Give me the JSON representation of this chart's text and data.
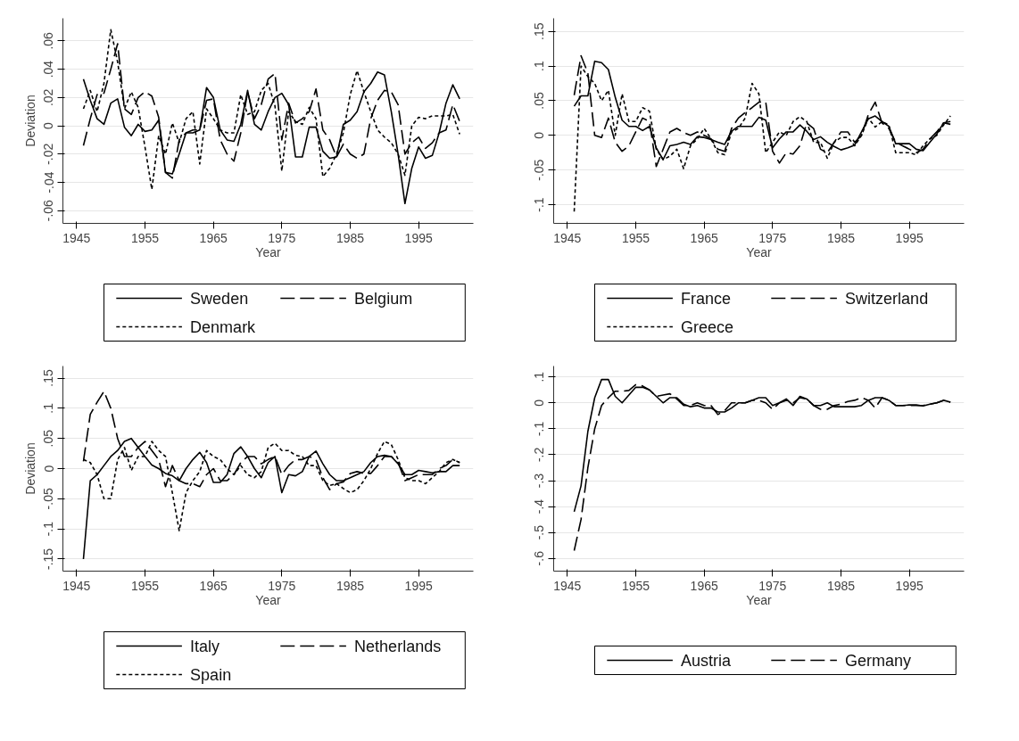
{
  "chart_data": [
    {
      "type": "line",
      "xlabel": "Year",
      "ylabel": "Deviation",
      "grid": "y",
      "legend": "bottom",
      "x": [
        1946,
        1947,
        1948,
        1949,
        1950,
        1951,
        1952,
        1953,
        1954,
        1955,
        1956,
        1957,
        1958,
        1959,
        1960,
        1961,
        1962,
        1963,
        1964,
        1965,
        1966,
        1967,
        1968,
        1969,
        1970,
        1971,
        1972,
        1973,
        1974,
        1975,
        1976,
        1977,
        1978,
        1979,
        1980,
        1981,
        1982,
        1983,
        1984,
        1985,
        1986,
        1987,
        1988,
        1989,
        1990,
        1991,
        1992,
        1993,
        1994,
        1995,
        1996,
        1997,
        1998,
        1999,
        2000,
        2001
      ],
      "xlim": [
        1943,
        2003
      ],
      "xticks": [
        1945,
        1955,
        1965,
        1975,
        1985,
        1995
      ],
      "ylim": [
        -0.069,
        0.076
      ],
      "yticks": [
        {
          "value": -0.06,
          "label": "-.06"
        },
        {
          "value": -0.04,
          "label": "-.04"
        },
        {
          "value": -0.02,
          "label": "-.02"
        },
        0,
        {
          "value": 0.02,
          "label": ".02"
        },
        {
          "value": 0.04,
          "label": ".04"
        },
        {
          "value": 0.06,
          "label": ".06"
        }
      ],
      "series": [
        {
          "name": "Sweden",
          "color": "#000000",
          "line_style": "solid",
          "values": [
            0.033,
            0.018,
            0.005,
            0.001,
            0.016,
            0.019,
            -0.001,
            -0.007,
            0.001,
            -0.004,
            -0.003,
            0.004,
            -0.033,
            -0.034,
            -0.02,
            -0.005,
            -0.005,
            -0.003,
            0.027,
            0.02,
            -0.003,
            -0.01,
            -0.011,
            0.001,
            0.025,
            0.001,
            -0.003,
            0.01,
            0.02,
            0.023,
            0.015,
            -0.022,
            -0.022,
            -0.001,
            -0.001,
            -0.018,
            -0.023,
            -0.022,
            0.001,
            0.004,
            0.01,
            0.024,
            0.03,
            0.038,
            0.036,
            0.01,
            -0.02,
            -0.055,
            -0.03,
            -0.015,
            -0.023,
            -0.021,
            -0.005,
            0.016,
            0.029,
            0.019
          ]
        },
        {
          "name": "Belgium",
          "color": "#000000",
          "line_style": "dashed",
          "values": [
            -0.014,
            0.005,
            0.022,
            0.023,
            0.04,
            0.058,
            0.012,
            0.008,
            0.02,
            0.024,
            0.021,
            0.006,
            -0.033,
            -0.037,
            -0.01,
            -0.005,
            -0.003,
            -0.003,
            0.018,
            0.019,
            -0.01,
            -0.02,
            -0.025,
            -0.005,
            0.024,
            0.005,
            0.015,
            0.033,
            0.037,
            -0.01,
            0.016,
            0.002,
            0.005,
            0.01,
            0.026,
            -0.003,
            -0.01,
            -0.022,
            -0.013,
            -0.02,
            -0.023,
            -0.02,
            0.005,
            0.018,
            0.025,
            0.024,
            0.015,
            -0.02,
            -0.012,
            -0.008,
            -0.016,
            -0.012,
            -0.005,
            -0.003,
            0.015,
            0.003
          ]
        },
        {
          "name": "Denmark",
          "color": "#000000",
          "line_style": "dotted",
          "values": [
            0.012,
            0.025,
            0.01,
            0.03,
            0.068,
            0.045,
            0.012,
            0.024,
            0.013,
            -0.015,
            -0.045,
            -0.007,
            -0.02,
            0.002,
            -0.012,
            0.005,
            0.01,
            -0.027,
            0.012,
            0.005,
            -0.003,
            -0.005,
            -0.005,
            0.022,
            0.008,
            0.01,
            0.025,
            0.03,
            0.014,
            -0.032,
            0.01,
            0.003,
            0.001,
            0.013,
            0.005,
            -0.036,
            -0.03,
            -0.02,
            -0.005,
            0.022,
            0.039,
            0.024,
            0.01,
            -0.003,
            -0.008,
            -0.012,
            -0.02,
            -0.035,
            0.0,
            0.006,
            0.005,
            0.007,
            0.007,
            0.007,
            0.008,
            -0.006
          ]
        }
      ]
    },
    {
      "type": "line",
      "xlabel": "Year",
      "grid": "y",
      "legend": "bottom",
      "x": [
        1946,
        1947,
        1948,
        1949,
        1950,
        1951,
        1952,
        1953,
        1954,
        1955,
        1956,
        1957,
        1958,
        1959,
        1960,
        1961,
        1962,
        1963,
        1964,
        1965,
        1966,
        1967,
        1968,
        1969,
        1970,
        1971,
        1972,
        1973,
        1974,
        1975,
        1976,
        1977,
        1978,
        1979,
        1980,
        1981,
        1982,
        1983,
        1984,
        1985,
        1986,
        1987,
        1988,
        1989,
        1990,
        1991,
        1992,
        1993,
        1994,
        1995,
        1996,
        1997,
        1998,
        1999,
        2000,
        2001
      ],
      "xlim": [
        1943,
        2003
      ],
      "xticks": [
        1945,
        1955,
        1965,
        1975,
        1985,
        1995
      ],
      "ylim": [
        -0.127,
        0.169
      ],
      "yticks": [
        {
          "value": -0.1,
          "label": "-.1"
        },
        {
          "value": -0.05,
          "label": "-.05"
        },
        0,
        {
          "value": 0.05,
          "label": ".05"
        },
        {
          "value": 0.1,
          "label": ".1"
        },
        {
          "value": 0.15,
          "label": ".15"
        }
      ],
      "series": [
        {
          "name": "France",
          "color": "#000000",
          "line_style": "solid",
          "values": [
            0.042,
            0.057,
            0.057,
            0.107,
            0.105,
            0.095,
            0.055,
            0.022,
            0.013,
            0.013,
            0.007,
            0.013,
            -0.018,
            -0.035,
            -0.015,
            -0.013,
            -0.01,
            -0.013,
            -0.002,
            -0.003,
            -0.006,
            -0.01,
            -0.013,
            0.006,
            0.013,
            0.013,
            0.013,
            0.026,
            0.022,
            -0.018,
            -0.005,
            0.005,
            0.005,
            0.015,
            0.006,
            -0.006,
            -0.002,
            -0.01,
            -0.016,
            -0.021,
            -0.018,
            -0.014,
            0.005,
            0.024,
            0.028,
            0.02,
            0.013,
            -0.012,
            -0.012,
            -0.012,
            -0.02,
            -0.022,
            -0.01,
            0.002,
            0.018,
            0.016
          ]
        },
        {
          "name": "Switzerland",
          "color": "#000000",
          "line_style": "dashed",
          "values": [
            0.058,
            0.115,
            0.09,
            0.0,
            -0.003,
            0.025,
            -0.01,
            -0.023,
            -0.015,
            0.005,
            0.025,
            0.02,
            -0.045,
            -0.02,
            0.005,
            0.01,
            0.004,
            0.0,
            0.005,
            0.0,
            -0.005,
            -0.02,
            -0.023,
            0.01,
            0.025,
            0.033,
            0.04,
            0.048,
            0.048,
            -0.023,
            -0.04,
            -0.025,
            -0.027,
            -0.015,
            0.018,
            0.01,
            -0.02,
            -0.025,
            -0.01,
            0.005,
            0.005,
            -0.01,
            0.0,
            0.03,
            0.048,
            0.018,
            0.01,
            -0.01,
            -0.015,
            -0.02,
            -0.025,
            -0.02,
            -0.005,
            0.005,
            0.018,
            0.02
          ]
        },
        {
          "name": "Greece",
          "color": "#000000",
          "line_style": "dotted",
          "values": [
            -0.11,
            0.1,
            0.085,
            0.075,
            0.05,
            0.065,
            0.0,
            0.06,
            0.02,
            0.02,
            0.04,
            0.035,
            -0.02,
            -0.035,
            -0.03,
            -0.02,
            -0.048,
            -0.015,
            -0.005,
            0.01,
            -0.005,
            -0.025,
            -0.028,
            0.005,
            0.01,
            0.025,
            0.075,
            0.06,
            -0.025,
            -0.01,
            0.005,
            0.0,
            0.02,
            0.027,
            0.02,
            -0.01,
            -0.01,
            -0.033,
            -0.01,
            -0.003,
            -0.003,
            -0.015,
            0.0,
            0.025,
            0.012,
            0.02,
            0.015,
            -0.025,
            -0.025,
            -0.025,
            -0.028,
            -0.015,
            -0.005,
            0.0,
            0.015,
            0.028
          ]
        }
      ]
    },
    {
      "type": "line",
      "xlabel": "Year",
      "ylabel": "Deviation",
      "grid": "y",
      "legend": "bottom",
      "x": [
        1946,
        1947,
        1948,
        1949,
        1950,
        1951,
        1952,
        1953,
        1954,
        1955,
        1956,
        1957,
        1958,
        1959,
        1960,
        1961,
        1962,
        1963,
        1964,
        1965,
        1966,
        1967,
        1968,
        1969,
        1970,
        1971,
        1972,
        1973,
        1974,
        1975,
        1976,
        1977,
        1978,
        1979,
        1980,
        1981,
        1982,
        1983,
        1984,
        1985,
        1986,
        1987,
        1988,
        1989,
        1990,
        1991,
        1992,
        1993,
        1994,
        1995,
        1996,
        1997,
        1998,
        1999,
        2000,
        2001
      ],
      "xlim": [
        1943,
        2003
      ],
      "xticks": [
        1945,
        1955,
        1965,
        1975,
        1985,
        1995
      ],
      "ylim": [
        -0.17,
        0.17
      ],
      "yticks": [
        {
          "value": -0.15,
          "label": "-.15"
        },
        {
          "value": -0.1,
          "label": "-.1"
        },
        {
          "value": -0.05,
          "label": "-.05"
        },
        0,
        {
          "value": 0.05,
          "label": ".05"
        },
        {
          "value": 0.1,
          "label": ".1"
        },
        {
          "value": 0.15,
          "label": ".15"
        }
      ],
      "series": [
        {
          "name": "Italy",
          "color": "#000000",
          "line_style": "solid",
          "values": [
            -0.15,
            -0.02,
            -0.01,
            0.005,
            0.02,
            0.03,
            0.045,
            0.05,
            0.035,
            0.02,
            0.006,
            0.0,
            -0.008,
            -0.012,
            -0.02,
            0.0,
            0.015,
            0.027,
            0.01,
            -0.023,
            -0.023,
            -0.01,
            0.025,
            0.036,
            0.02,
            0.0,
            -0.015,
            0.01,
            0.02,
            -0.04,
            -0.01,
            -0.012,
            -0.005,
            0.02,
            0.029,
            0.008,
            -0.01,
            -0.02,
            -0.02,
            -0.015,
            -0.01,
            -0.005,
            0.01,
            0.02,
            0.022,
            0.02,
            0.008,
            -0.01,
            -0.01,
            -0.003,
            -0.005,
            -0.007,
            -0.005,
            -0.005,
            0.005,
            0.005
          ]
        },
        {
          "name": "Netherlands",
          "color": "#000000",
          "line_style": "dashed",
          "values": [
            0.012,
            0.09,
            0.11,
            0.128,
            0.1,
            0.05,
            0.02,
            0.02,
            0.035,
            0.045,
            0.03,
            0.015,
            -0.03,
            0.005,
            -0.02,
            -0.025,
            -0.025,
            -0.03,
            -0.01,
            0.0,
            -0.02,
            -0.02,
            -0.01,
            0.01,
            0.02,
            0.02,
            0.008,
            0.015,
            0.02,
            -0.01,
            0.005,
            0.015,
            0.015,
            0.02,
            0.015,
            -0.015,
            -0.035,
            -0.025,
            -0.022,
            -0.008,
            -0.005,
            -0.008,
            -0.008,
            0.005,
            0.02,
            0.02,
            0.01,
            -0.02,
            -0.015,
            -0.01,
            -0.01,
            -0.01,
            0.0,
            0.005,
            0.015,
            0.01
          ]
        },
        {
          "name": "Spain",
          "color": "#000000",
          "line_style": "dotted",
          "values": [
            0.015,
            0.01,
            -0.01,
            -0.05,
            -0.05,
            0.015,
            0.035,
            -0.003,
            0.02,
            0.02,
            0.045,
            0.03,
            0.02,
            -0.04,
            -0.103,
            -0.04,
            -0.02,
            -0.005,
            0.03,
            0.02,
            0.015,
            0.0,
            -0.01,
            0.005,
            -0.01,
            -0.015,
            -0.005,
            0.035,
            0.042,
            0.03,
            0.03,
            0.022,
            0.02,
            0.005,
            0.005,
            -0.02,
            -0.028,
            -0.025,
            -0.033,
            -0.04,
            -0.035,
            -0.02,
            0.0,
            0.025,
            0.045,
            0.04,
            0.015,
            -0.015,
            -0.02,
            -0.02,
            -0.025,
            -0.015,
            -0.005,
            0.01,
            0.015,
            0.01
          ]
        }
      ]
    },
    {
      "type": "line",
      "xlabel": "Year",
      "grid": "y",
      "legend": "bottom",
      "x": [
        1946,
        1947,
        1948,
        1949,
        1950,
        1951,
        1952,
        1953,
        1954,
        1955,
        1956,
        1957,
        1958,
        1959,
        1960,
        1961,
        1962,
        1963,
        1964,
        1965,
        1966,
        1967,
        1968,
        1969,
        1970,
        1971,
        1972,
        1973,
        1974,
        1975,
        1976,
        1977,
        1978,
        1979,
        1980,
        1981,
        1982,
        1983,
        1984,
        1985,
        1986,
        1987,
        1988,
        1989,
        1990,
        1991,
        1992,
        1993,
        1994,
        1995,
        1996,
        1997,
        1998,
        1999,
        2000,
        2001
      ],
      "xlim": [
        1943,
        2003
      ],
      "xticks": [
        1945,
        1955,
        1965,
        1975,
        1985,
        1995
      ],
      "ylim": [
        -0.649,
        0.142
      ],
      "yticks": [
        {
          "value": -0.6,
          "label": "-.6"
        },
        {
          "value": -0.5,
          "label": "-.5"
        },
        {
          "value": -0.4,
          "label": "-.4"
        },
        {
          "value": -0.3,
          "label": "-.3"
        },
        {
          "value": -0.2,
          "label": "-.2"
        },
        {
          "value": -0.1,
          "label": "-.1"
        },
        0,
        {
          "value": 0.1,
          "label": ".1"
        }
      ],
      "series": [
        {
          "name": "Austria",
          "color": "#000000",
          "line_style": "solid",
          "values": [
            -0.42,
            -0.32,
            -0.11,
            0.02,
            0.09,
            0.09,
            0.025,
            0.0,
            0.03,
            0.06,
            0.06,
            0.05,
            0.025,
            0.0,
            0.02,
            0.02,
            -0.005,
            -0.015,
            -0.01,
            -0.02,
            -0.02,
            -0.035,
            -0.035,
            -0.02,
            0.0,
            0.0,
            0.01,
            0.02,
            0.02,
            -0.01,
            0.0,
            0.015,
            -0.01,
            0.025,
            0.015,
            -0.01,
            -0.01,
            0.0,
            -0.015,
            -0.015,
            -0.015,
            -0.015,
            -0.01,
            0.01,
            0.02,
            0.02,
            0.01,
            -0.01,
            -0.01,
            -0.008,
            -0.008,
            -0.012,
            -0.005,
            0.0,
            0.01,
            0.003
          ]
        },
        {
          "name": "Germany",
          "color": "#000000",
          "line_style": "dashed",
          "values": [
            -0.57,
            -0.45,
            -0.25,
            -0.1,
            -0.01,
            0.02,
            0.045,
            0.045,
            0.048,
            0.07,
            0.065,
            0.05,
            0.025,
            0.03,
            0.035,
            0.015,
            -0.01,
            -0.01,
            0.0,
            -0.01,
            -0.01,
            -0.045,
            -0.03,
            0.0,
            0.0,
            0.0,
            0.01,
            0.01,
            0.0,
            -0.025,
            0.0,
            0.01,
            0.0,
            0.02,
            0.015,
            -0.01,
            -0.025,
            -0.025,
            -0.01,
            -0.005,
            0.005,
            0.01,
            0.02,
            0.01,
            -0.02,
            0.02,
            0.01,
            -0.01,
            -0.01,
            -0.01,
            -0.01,
            -0.01,
            -0.005,
            0.0,
            0.01,
            0.003
          ]
        }
      ]
    }
  ]
}
